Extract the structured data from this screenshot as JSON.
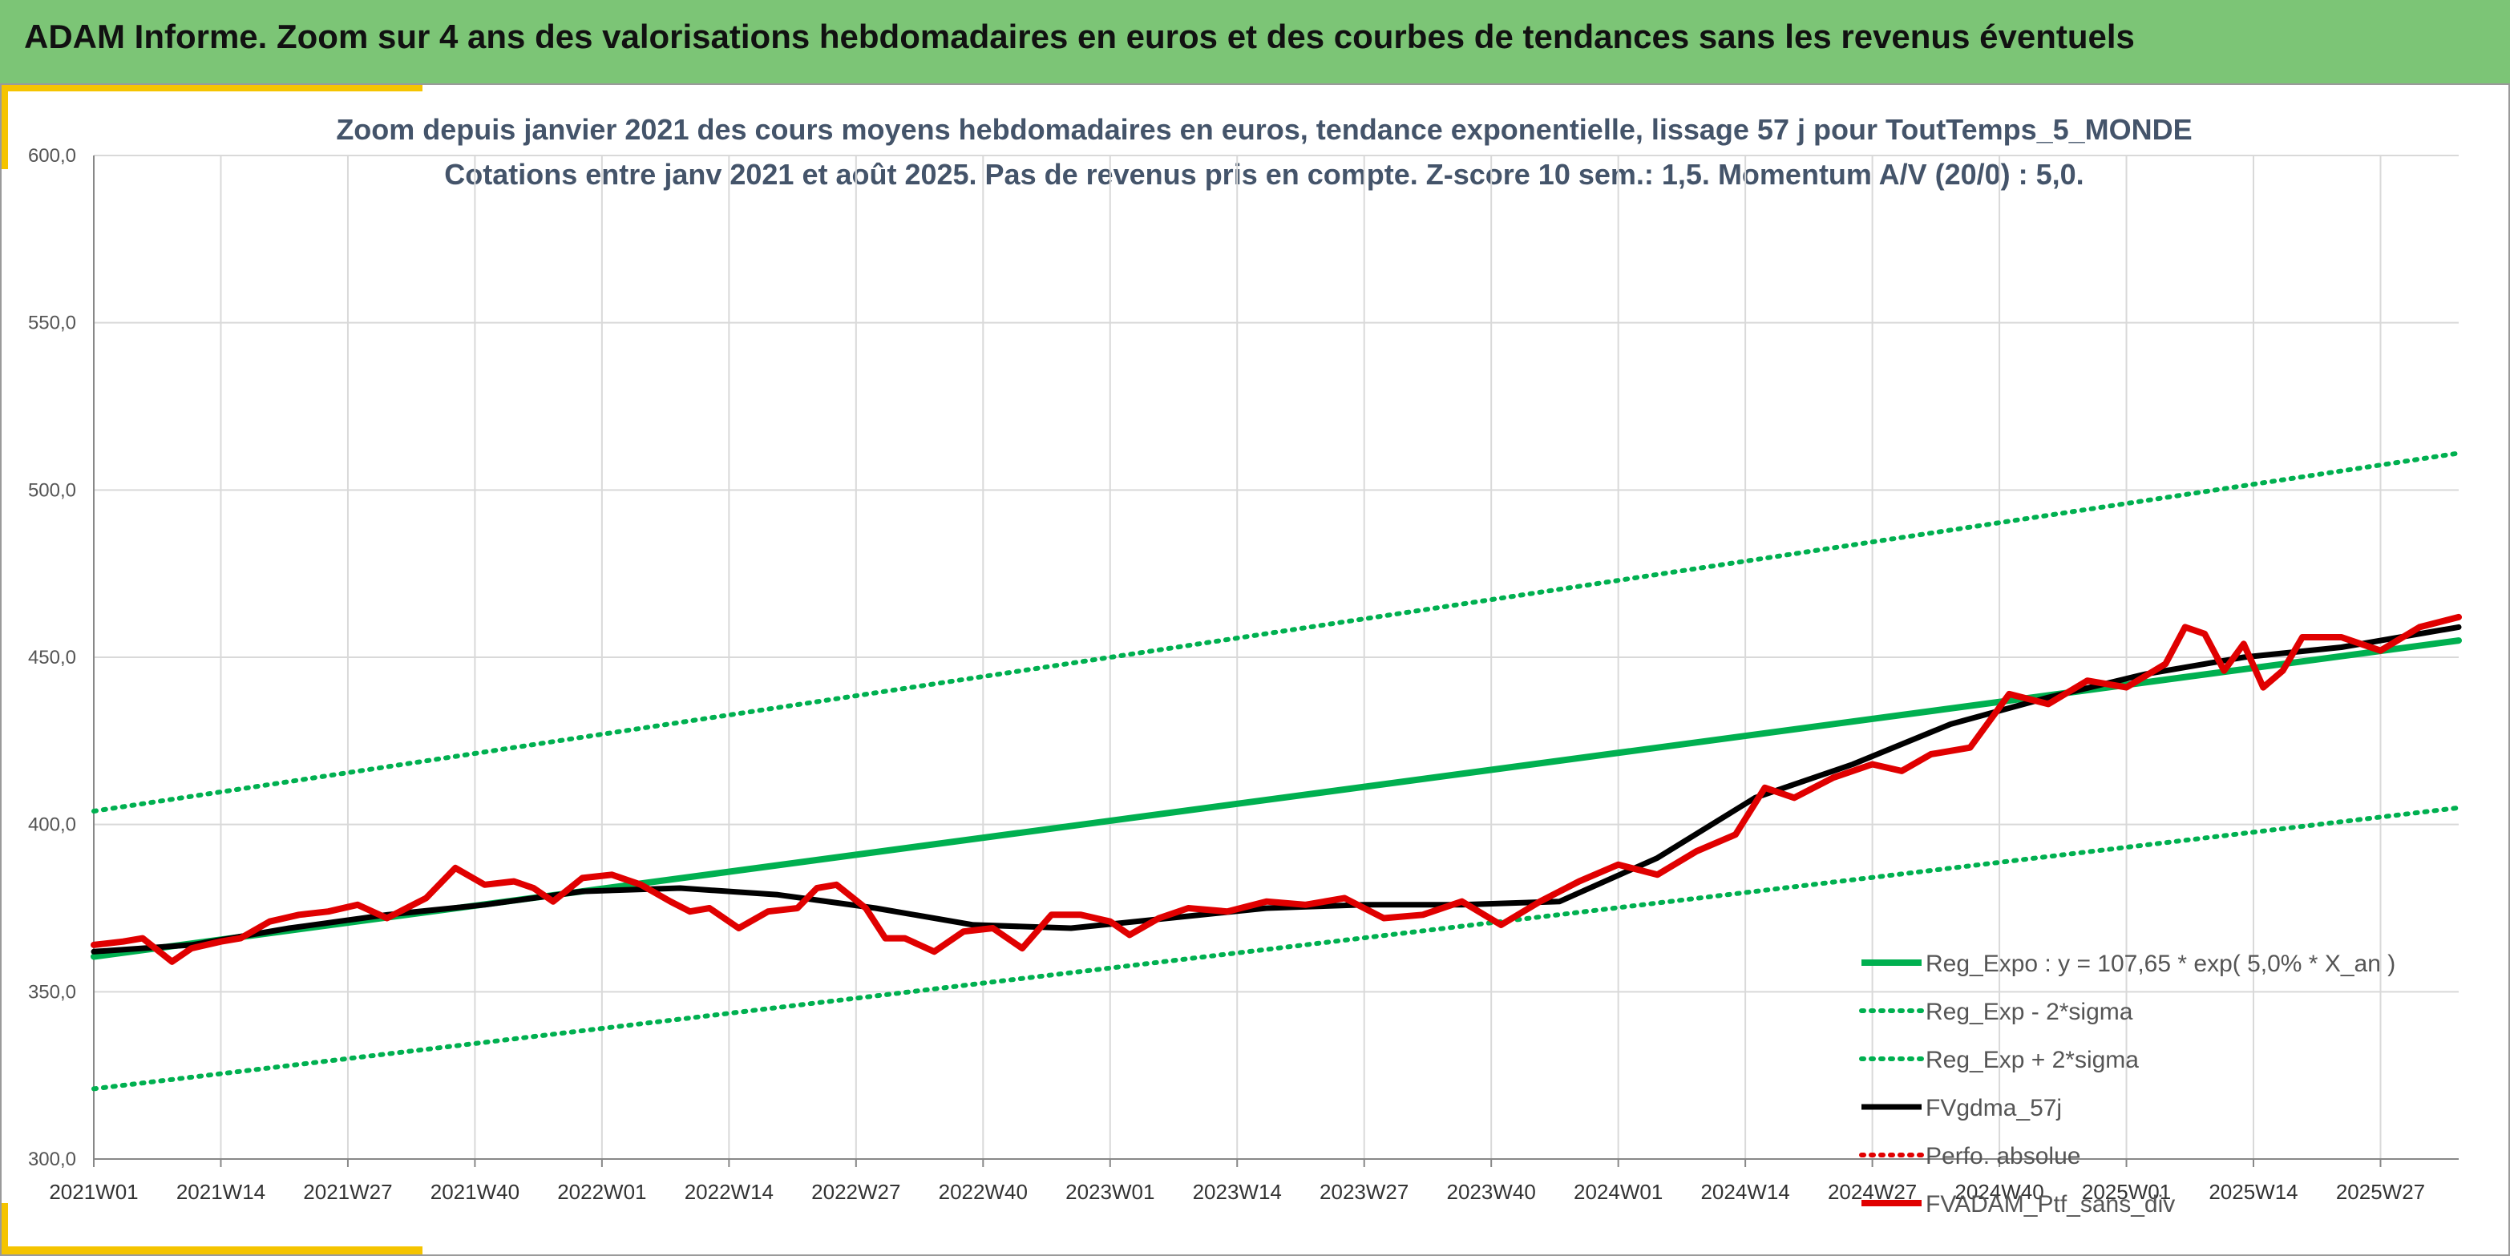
{
  "header": {
    "title": "ADAM Informe. Zoom sur 4 ans des valorisations hebdomadaires en euros et des courbes de tendances sans les revenus éventuels"
  },
  "colors": {
    "header_bg": "#7cc576",
    "accent": "#f5c400",
    "trend": "#00b050",
    "gdma": "#000000",
    "portfolio": "#e00000"
  },
  "chart_data": {
    "type": "line",
    "title": "Zoom depuis janvier 2021 des cours moyens hebdomadaires en euros, tendance exponentielle, lissage 57 j pour ToutTemps_5_MONDE",
    "subtitle": "Cotations entre janv 2021 et août 2025. Pas de revenus pris en compte. Z-score 10 sem.: 1,5. Momentum A/V (20/0) : 5,0.",
    "ylim": [
      300,
      600
    ],
    "y_ticks": [
      "300,0",
      "350,0",
      "400,0",
      "450,0",
      "500,0",
      "550,0",
      "600,0"
    ],
    "x_ticks": [
      "2021W01",
      "2021W14",
      "2021W27",
      "2021W40",
      "2022W01",
      "2022W14",
      "2022W27",
      "2022W40",
      "2023W01",
      "2023W14",
      "2023W27",
      "2023W40",
      "2024W01",
      "2024W14",
      "2024W27",
      "2024W40",
      "2025W01",
      "2025W14",
      "2025W27"
    ],
    "grid": true,
    "legend_position": "bottom-right",
    "x_week_index_of_ticks": [
      0,
      13,
      26,
      39,
      52,
      65,
      78,
      91,
      104,
      117,
      130,
      143,
      156,
      169,
      182,
      195,
      208,
      221,
      234
    ],
    "x_range_weeks": [
      0,
      242
    ],
    "series": [
      {
        "name": "Reg_Expo : y = 107,65 * exp( 5,0% *  X_an )",
        "style": "solid-thick",
        "color": "#00b050",
        "x": [
          0,
          242
        ],
        "y": [
          360.5,
          455
        ]
      },
      {
        "name": "Reg_Exp - 2*sigma",
        "style": "dotted",
        "color": "#00b050",
        "x": [
          0,
          242
        ],
        "y": [
          321,
          405
        ]
      },
      {
        "name": "Reg_Exp + 2*sigma",
        "style": "dotted",
        "color": "#00b050",
        "x": [
          0,
          242
        ],
        "y": [
          404,
          511
        ]
      },
      {
        "name": "FVgdma_57j",
        "style": "solid",
        "color": "#000000",
        "x": [
          0,
          10,
          20,
          30,
          40,
          50,
          60,
          70,
          80,
          90,
          100,
          110,
          120,
          130,
          140,
          150,
          160,
          170,
          180,
          190,
          200,
          210,
          220,
          230,
          242
        ],
        "y": [
          362,
          364,
          369,
          373,
          376,
          380,
          381,
          379,
          375,
          370,
          369,
          372,
          375,
          376,
          376,
          377,
          390,
          408,
          418,
          430,
          438,
          445,
          450,
          453,
          459
        ]
      },
      {
        "name": "Perfo. absolue",
        "style": "dotted",
        "color": "#e00000",
        "x": [],
        "y": []
      },
      {
        "name": "FVADAM_Ptf_sans_div",
        "style": "solid-thick",
        "color": "#e00000",
        "x": [
          0,
          3,
          5,
          8,
          10,
          13,
          15,
          18,
          21,
          24,
          27,
          30,
          34,
          37,
          40,
          43,
          45,
          47,
          50,
          53,
          56,
          59,
          61,
          63,
          66,
          69,
          72,
          74,
          76,
          79,
          81,
          83,
          86,
          89,
          92,
          95,
          98,
          101,
          104,
          106,
          109,
          112,
          116,
          120,
          124,
          128,
          132,
          136,
          140,
          144,
          148,
          152,
          156,
          160,
          164,
          168,
          171,
          174,
          178,
          182,
          185,
          188,
          192,
          196,
          200,
          204,
          208,
          212,
          214,
          216,
          218,
          220,
          222,
          224,
          226,
          230,
          234,
          238,
          242
        ],
        "y": [
          364,
          365,
          366,
          359,
          363,
          365,
          366,
          371,
          373,
          374,
          376,
          372,
          378,
          387,
          382,
          383,
          381,
          377,
          384,
          385,
          382,
          377,
          374,
          375,
          369,
          374,
          375,
          381,
          382,
          375,
          366,
          366,
          362,
          368,
          369,
          363,
          373,
          373,
          371,
          367,
          372,
          375,
          374,
          377,
          376,
          378,
          372,
          373,
          377,
          370,
          377,
          383,
          388,
          385,
          392,
          397,
          411,
          408,
          414,
          418,
          416,
          421,
          423,
          439,
          436,
          443,
          441,
          448,
          459,
          457,
          446,
          454,
          441,
          446,
          456,
          456,
          452,
          459,
          462
        ]
      }
    ]
  }
}
